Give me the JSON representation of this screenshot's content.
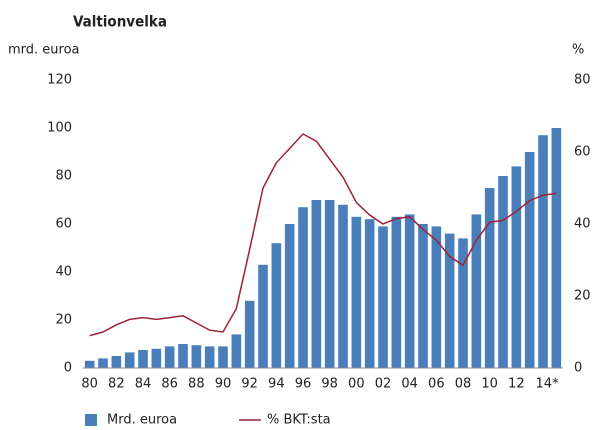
{
  "chart_data": {
    "type": "bar",
    "title": "Valtionvelka",
    "y_label": "mrd. euroa",
    "y2_label": "%",
    "categories": [
      "80",
      null,
      "82",
      null,
      "84",
      null,
      "86",
      null,
      "88",
      null,
      "90",
      null,
      "92",
      null,
      "94",
      null,
      "96",
      null,
      "98",
      null,
      "00",
      null,
      "02",
      null,
      "04",
      null,
      "06",
      null,
      "08",
      null,
      "10",
      null,
      "12",
      null,
      "14*",
      null
    ],
    "series": [
      {
        "name": "Mrd. euroa",
        "type": "bar",
        "color": "#4a7ebb",
        "values": [
          3,
          4,
          5,
          6.5,
          7.5,
          8,
          9,
          10,
          9.5,
          9,
          9,
          14,
          28,
          43,
          52,
          60,
          67,
          70,
          70,
          68,
          63,
          62,
          59,
          63,
          64,
          60,
          59,
          56,
          54,
          64,
          75,
          80,
          84,
          90,
          97,
          100
        ]
      },
      {
        "name": "% BKT:sta",
        "type": "line",
        "axis": "y2",
        "color": "#9b2335",
        "values": [
          9,
          10,
          12,
          13.5,
          14,
          13.5,
          14,
          14.5,
          12.5,
          10.5,
          10,
          16.5,
          33,
          50,
          57,
          61,
          65,
          63,
          58,
          53,
          46,
          42.5,
          40,
          41.5,
          42,
          38.5,
          35.5,
          31,
          28.5,
          35.5,
          40.5,
          41,
          43.5,
          46.5,
          48,
          48.5
        ]
      }
    ],
    "ylim": [
      0,
      120
    ],
    "yticks": [
      0,
      20,
      40,
      60,
      80,
      100,
      120
    ],
    "y2lim": [
      0,
      80
    ],
    "y2ticks": [
      0,
      20,
      40,
      60,
      80
    ],
    "grid": false
  }
}
